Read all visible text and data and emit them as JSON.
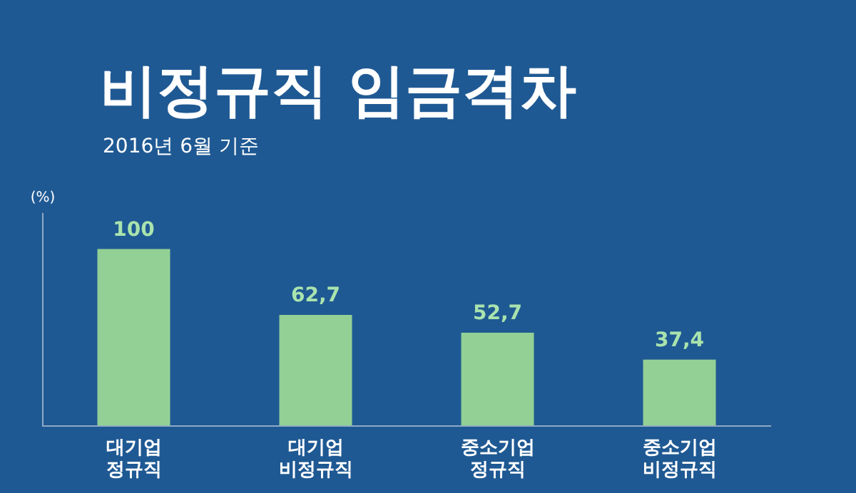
{
  "chart_data": {
    "type": "bar",
    "title": "비정규직 임금격차",
    "subtitle": "2016년 6월 기준",
    "ylabel": "(%)",
    "categories": [
      "대기업\n정규직",
      "대기업\n비정규직",
      "중소기업\n정규직",
      "중소기업\n비정규직"
    ],
    "values": [
      100,
      62.7,
      52.7,
      37.4
    ],
    "color": "#92d095",
    "value_labels": [
      "100",
      "62,7",
      "52,7",
      "37,4"
    ],
    "ylim": [
      0,
      120
    ],
    "grid": false,
    "legend": false,
    "tick_labels": "x"
  }
}
